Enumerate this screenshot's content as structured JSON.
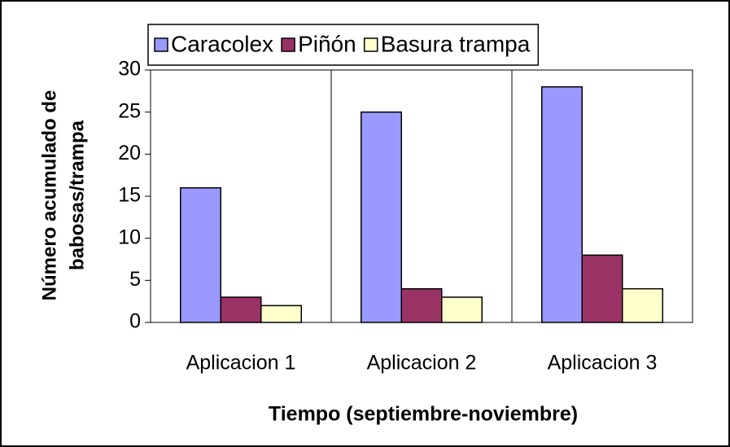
{
  "chart_data": {
    "type": "bar",
    "y_label": [
      "Número acumulado de",
      "babosas/trampa"
    ],
    "x_label": "Tiempo (septiembre-noviembre)",
    "categories": [
      "Aplicacion 1",
      "Aplicacion 2",
      "Aplicacion 3"
    ],
    "series": [
      {
        "name": "Caracolex",
        "color": "#9999ff",
        "values": [
          16,
          25,
          28
        ]
      },
      {
        "name": "Piñón",
        "color": "#993366",
        "values": [
          3,
          4,
          8
        ]
      },
      {
        "name": "Basura trampa",
        "color": "#ffffcc",
        "values": [
          2,
          3,
          4
        ]
      }
    ],
    "ylim": [
      0,
      30
    ],
    "yticks": [
      0,
      5,
      10,
      15,
      20,
      25,
      30
    ],
    "legend": "top"
  }
}
